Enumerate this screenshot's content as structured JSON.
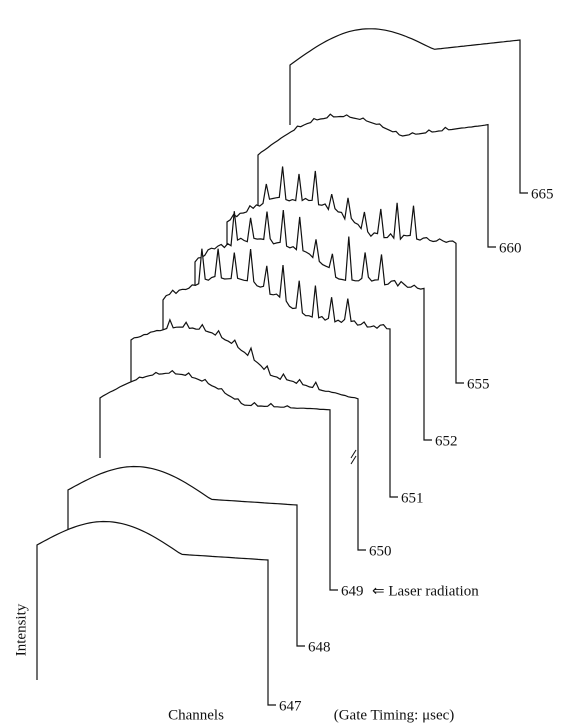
{
  "figure": {
    "traces": [
      "647",
      "648",
      "649",
      "650",
      "651",
      "652",
      "655",
      "660",
      "665"
    ],
    "annotation": "⇐ Laser radiation",
    "y_label": "Intensity",
    "x_label": "Channels",
    "timing_label": "(Gate Timing: μsec)"
  }
}
